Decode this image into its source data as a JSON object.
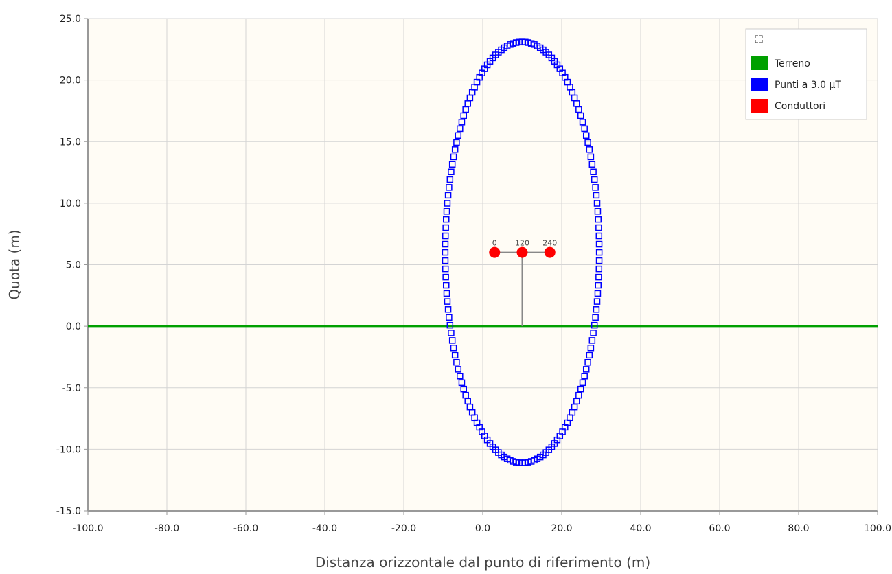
{
  "chart_data": {
    "type": "scatter",
    "xlabel": "Distanza orizzontale dal punto di riferimento (m)",
    "ylabel": "Quota (m)",
    "xlim": [
      -100,
      100
    ],
    "ylim": [
      -15,
      25
    ],
    "x_ticks": [
      "-100.0",
      "-80.0",
      "-60.0",
      "-40.0",
      "-20.0",
      "0.0",
      "20.0",
      "40.0",
      "60.0",
      "80.0",
      "100.0"
    ],
    "y_ticks": [
      "25.0",
      "20.0",
      "15.0",
      "10.0",
      "5.0",
      "0.0",
      "-5.0",
      "-10.0",
      "-15.0"
    ],
    "grid": true,
    "legend_position": "top-right",
    "legend_icon": "expand-icon",
    "series": [
      {
        "name": "Terreno",
        "color": "#00a000",
        "kind": "line",
        "points": [
          [
            -100,
            0
          ],
          [
            100,
            0
          ]
        ]
      },
      {
        "name": "Punti a 3.0 µT",
        "color": "#0000ff",
        "kind": "ellipse-markers",
        "center": [
          10,
          6
        ],
        "semi_axis_x": 19.5,
        "semi_axis_y": 17.1,
        "count": 160
      },
      {
        "name": "Conduttori",
        "color": "#ff0000",
        "kind": "points",
        "points": [
          [
            3,
            6
          ],
          [
            10,
            6
          ],
          [
            17,
            6
          ]
        ],
        "labels": [
          "0",
          "120",
          "240"
        ]
      }
    ],
    "pylon": {
      "base": [
        10,
        0
      ],
      "top": [
        10,
        6
      ],
      "arm": [
        [
          3,
          6
        ],
        [
          17,
          6
        ]
      ],
      "color": "#888888"
    },
    "colors": {
      "plot_background": "#fffcf5",
      "grid": "#d4d4d4",
      "axis": "#999999"
    }
  }
}
